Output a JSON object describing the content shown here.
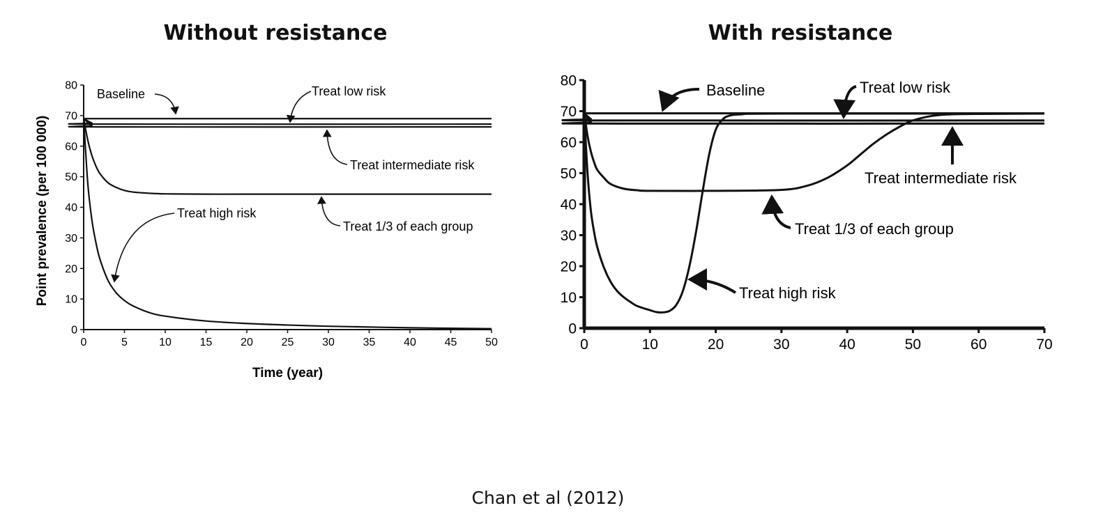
{
  "caption": "Chan et al (2012)",
  "chart_data": [
    {
      "type": "line",
      "title": "Without resistance",
      "xlabel": "Time (year)",
      "ylabel": "Point prevalence (per 100 000)",
      "xlim": [
        0,
        50
      ],
      "ylim": [
        0,
        80
      ],
      "xticks": [
        0,
        5,
        10,
        15,
        20,
        25,
        30,
        35,
        40,
        45,
        50
      ],
      "yticks": [
        0,
        10,
        20,
        30,
        40,
        50,
        60,
        70,
        80
      ],
      "grid": false,
      "series": [
        {
          "name": "Baseline",
          "x": [
            0,
            50
          ],
          "y": [
            69,
            69
          ]
        },
        {
          "name": "Treat low risk",
          "x": [
            0,
            1,
            2,
            50
          ],
          "y": [
            69,
            67.6,
            67.2,
            67.2
          ]
        },
        {
          "name": "Treat intermediate risk",
          "x": [
            0,
            1,
            2,
            50
          ],
          "y": [
            69,
            66.8,
            66.3,
            66.3
          ]
        },
        {
          "name": "Treat 1/3 of each group",
          "x": [
            0,
            0.5,
            1,
            1.5,
            2,
            3,
            4,
            5,
            6,
            8,
            10,
            15,
            20,
            30,
            40,
            50
          ],
          "y": [
            69,
            62,
            57,
            53.5,
            51,
            48,
            46.5,
            45.5,
            45,
            44.6,
            44.4,
            44.3,
            44.3,
            44.3,
            44.3,
            44.3
          ]
        },
        {
          "name": "Treat high risk",
          "x": [
            0,
            0.5,
            1,
            1.5,
            2,
            3,
            4,
            5,
            6,
            8,
            10,
            15,
            20,
            25,
            30,
            40,
            50
          ],
          "y": [
            69,
            48,
            36,
            28.5,
            23,
            16,
            12,
            9.5,
            7.8,
            5.6,
            4.4,
            2.8,
            2,
            1.5,
            1.1,
            0.6,
            0.3
          ]
        }
      ],
      "annotations": [
        "Baseline",
        "Treat low risk",
        "Treat intermediate risk",
        "Treat 1/3 of each group",
        "Treat high risk"
      ]
    },
    {
      "type": "line",
      "title": "With resistance",
      "xlabel": "",
      "ylabel": "",
      "xlim": [
        0,
        70
      ],
      "ylim": [
        0,
        80
      ],
      "xticks": [
        0,
        10,
        20,
        30,
        40,
        50,
        60,
        70
      ],
      "yticks": [
        0,
        10,
        20,
        30,
        40,
        50,
        60,
        70,
        80
      ],
      "grid": false,
      "series": [
        {
          "name": "Baseline",
          "x": [
            0,
            70
          ],
          "y": [
            69.3,
            69.3
          ]
        },
        {
          "name": "Treat low risk",
          "x": [
            0,
            1,
            2,
            70
          ],
          "y": [
            69.3,
            67.5,
            67,
            67
          ]
        },
        {
          "name": "Treat intermediate risk",
          "x": [
            0,
            1,
            2,
            70
          ],
          "y": [
            69.3,
            66.5,
            66,
            66
          ]
        },
        {
          "name": "Treat 1/3 of each group",
          "x": [
            0,
            0.5,
            1,
            1.5,
            2,
            3,
            4,
            6,
            8,
            10,
            20,
            30,
            34,
            37,
            40,
            42,
            44,
            46,
            48,
            50,
            53,
            56,
            60,
            70
          ],
          "y": [
            69.3,
            62,
            57,
            53.5,
            51,
            48.5,
            46.5,
            45,
            44.5,
            44.3,
            44.3,
            44.6,
            46,
            48.5,
            52.5,
            56,
            59.5,
            62.5,
            65,
            67,
            68.5,
            69,
            69.1,
            69.2
          ]
        },
        {
          "name": "Treat high risk",
          "x": [
            0,
            0.5,
            1,
            1.5,
            2,
            3,
            4,
            5,
            6,
            7,
            8,
            10,
            11,
            12,
            13,
            14,
            15,
            16,
            17,
            18,
            19,
            20,
            21,
            22,
            24,
            30,
            70
          ],
          "y": [
            69.3,
            50,
            38,
            31,
            26,
            19.5,
            15,
            12,
            10,
            8.5,
            7.2,
            5.8,
            5.2,
            5.1,
            5.6,
            7.5,
            12,
            20,
            31,
            44,
            56,
            64,
            67.2,
            68.5,
            69,
            69.2,
            69.2
          ]
        }
      ],
      "annotations": [
        "Baseline",
        "Treat low risk",
        "Treat intermediate risk",
        "Treat 1/3 of each group",
        "Treat high risk"
      ]
    }
  ]
}
